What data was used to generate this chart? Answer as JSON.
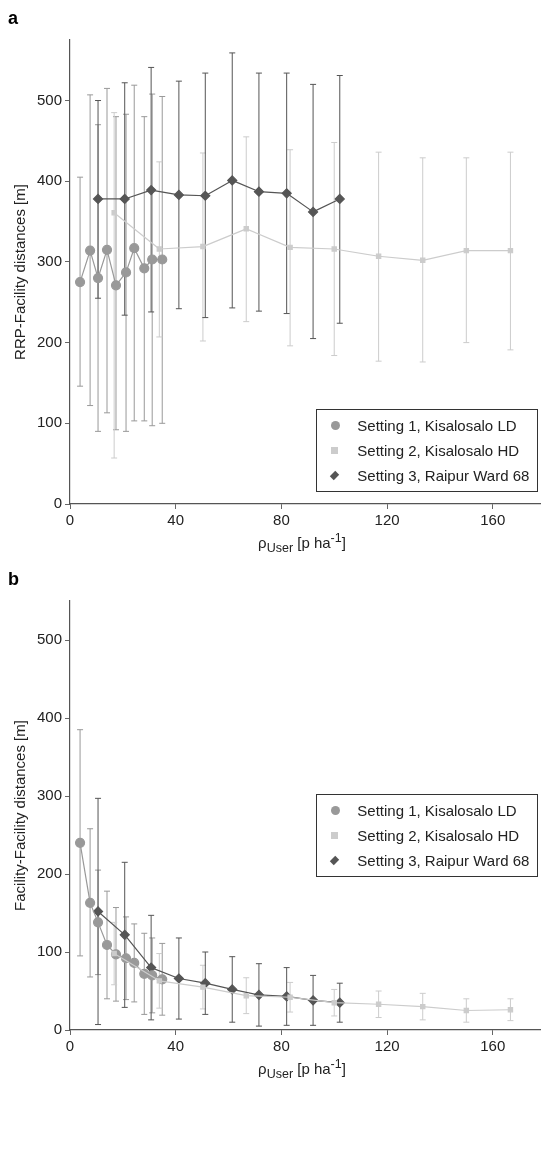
{
  "chart_data": [
    {
      "type": "line",
      "title": "a",
      "xlabel": "ρ$_{User}$ [p ha$^{-1}$]",
      "ylabel": "RRP-Facility distances [m]",
      "xlim": [
        0,
        178
      ],
      "xticks": [
        0,
        40,
        80,
        120,
        160
      ],
      "ylim": [
        0,
        575
      ],
      "yticks": [
        0,
        100,
        200,
        300,
        400,
        500
      ],
      "grid": false,
      "legend": "bottom right",
      "series": [
        {
          "name": "Setting 1, Kisalosalo LD",
          "color": "#999999",
          "marker": "circle",
          "x": [
            3.8,
            7.6,
            10.6,
            14,
            17.4,
            21.2,
            24.3,
            28.1,
            31.1,
            34.9
          ],
          "values": [
            275,
            314,
            280,
            315,
            271,
            287,
            317,
            292,
            303,
            303
          ],
          "errors": [
            [
              146,
              405
            ],
            [
              122,
              507
            ],
            [
              90,
              470
            ],
            [
              113,
              515
            ],
            [
              92,
              480
            ],
            [
              90,
              483
            ],
            [
              103,
              519
            ],
            [
              103,
              480
            ],
            [
              97,
              508
            ],
            [
              100,
              505
            ]
          ]
        },
        {
          "name": "Setting 2, Kisalosalo HD",
          "color": "#cccccc",
          "marker": "square",
          "x": [
            16.7,
            33.8,
            50.3,
            66.7,
            83.3,
            100,
            116.8,
            133.5,
            150,
            166.7
          ],
          "values": [
            361,
            316,
            319,
            341,
            318,
            316,
            307,
            302,
            314,
            314
          ],
          "errors": [
            [
              57,
              485
            ],
            [
              207,
              424
            ],
            [
              202,
              435
            ],
            [
              226,
              455
            ],
            [
              196,
              439
            ],
            [
              184,
              448
            ],
            [
              177,
              436
            ],
            [
              176,
              429
            ],
            [
              200,
              429
            ],
            [
              191,
              436
            ]
          ]
        },
        {
          "name": "Setting 3, Raipur Ward 68",
          "color": "#555555",
          "marker": "diamond",
          "x": [
            10.6,
            20.7,
            30.7,
            41.2,
            51.2,
            61.4,
            71.5,
            82,
            92,
            102.1
          ],
          "values": [
            378,
            378,
            389,
            383,
            382,
            401,
            387,
            385,
            362,
            378
          ],
          "errors": [
            [
              255,
              500
            ],
            [
              234,
              522
            ],
            [
              238,
              541
            ],
            [
              242,
              524
            ],
            [
              231,
              534
            ],
            [
              243,
              559
            ],
            [
              239,
              534
            ],
            [
              236,
              534
            ],
            [
              205,
              520
            ],
            [
              224,
              531
            ]
          ]
        }
      ]
    },
    {
      "type": "line",
      "title": "b",
      "xlabel": "ρ$_{User}$ [p ha$^{-1}$]",
      "ylabel": "Facility-Facility distances [m]",
      "xlim": [
        0,
        178
      ],
      "xticks": [
        0,
        40,
        80,
        120,
        160
      ],
      "ylim": [
        0,
        550
      ],
      "yticks": [
        0,
        100,
        200,
        300,
        400,
        500
      ],
      "grid": false,
      "legend": "right",
      "series": [
        {
          "name": "Setting 1, Kisalosalo LD",
          "color": "#999999",
          "marker": "circle",
          "x": [
            3.8,
            7.6,
            10.6,
            14,
            17.4,
            21.2,
            24.3,
            28.1,
            31.1,
            34.9
          ],
          "values": [
            240,
            163,
            138,
            109,
            97,
            92,
            86,
            72,
            70,
            65
          ],
          "errors": [
            145,
            95,
            67,
            69,
            60,
            53,
            50,
            52,
            48,
            46
          ]
        },
        {
          "name": "Setting 2, Kisalosalo HD",
          "color": "#cccccc",
          "marker": "square",
          "x": [
            16.7,
            33.8,
            50.3,
            66.7,
            83.3,
            100,
            116.8,
            133.5,
            150,
            166.7
          ],
          "values": [
            98,
            63,
            55,
            44,
            42,
            35,
            33,
            30,
            25,
            26
          ],
          "errors": [
            40,
            35,
            28,
            23,
            19,
            17,
            17,
            17,
            15,
            14
          ]
        },
        {
          "name": "Setting 3, Raipur Ward 68",
          "color": "#555555",
          "marker": "diamond",
          "x": [
            10.6,
            20.7,
            30.7,
            41.2,
            51.2,
            61.4,
            71.5,
            82,
            92,
            102.1
          ],
          "values": [
            152,
            122,
            80,
            66,
            60,
            52,
            45,
            43,
            38,
            35
          ],
          "errors": [
            145,
            93,
            67,
            52,
            40,
            42,
            40,
            37,
            32,
            25
          ]
        }
      ]
    }
  ]
}
